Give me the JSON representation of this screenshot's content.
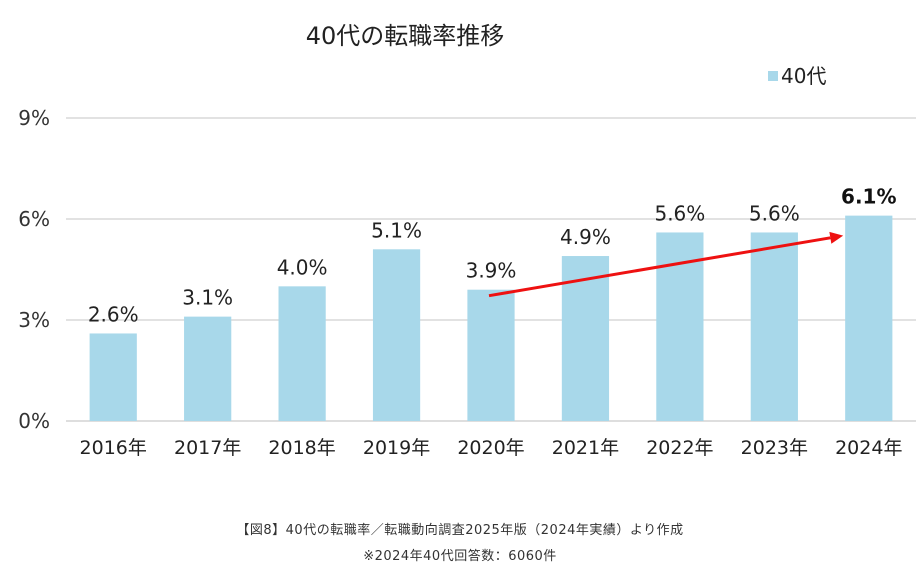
{
  "chart_data": {
    "type": "bar",
    "title": "40代の転職率推移",
    "categories": [
      "2016年",
      "2017年",
      "2018年",
      "2019年",
      "2020年",
      "2021年",
      "2022年",
      "2023年",
      "2024年"
    ],
    "series": [
      {
        "name": "40代",
        "values": [
          2.6,
          3.1,
          4.0,
          5.1,
          3.9,
          4.9,
          5.6,
          5.6,
          6.1
        ],
        "color": "#a8d8ea"
      }
    ],
    "data_labels": [
      "2.6%",
      "3.1%",
      "4.0%",
      "5.1%",
      "3.9%",
      "4.9%",
      "5.6%",
      "5.6%",
      "6.1%"
    ],
    "highlight_label_index": 8,
    "ylim": [
      0,
      9
    ],
    "yticks": [
      0,
      3,
      6,
      9
    ],
    "ytick_labels": [
      "0%",
      "3%",
      "6%",
      "9%"
    ],
    "xlabel": "",
    "ylabel": "",
    "grid": true,
    "legend": {
      "position": "top-right",
      "entries": [
        "40代"
      ]
    },
    "annotations": [
      {
        "type": "arrow",
        "from_category": "2020年",
        "from_value": 3.9,
        "to_category": "2024年",
        "to_value": 6.1,
        "color": "#ee1111"
      }
    ]
  },
  "captions": {
    "source": "【図8】40代の転職率／転職動向調査2025年版（2024年実績）より作成",
    "note": "※2024年40代回答数：6060件"
  }
}
